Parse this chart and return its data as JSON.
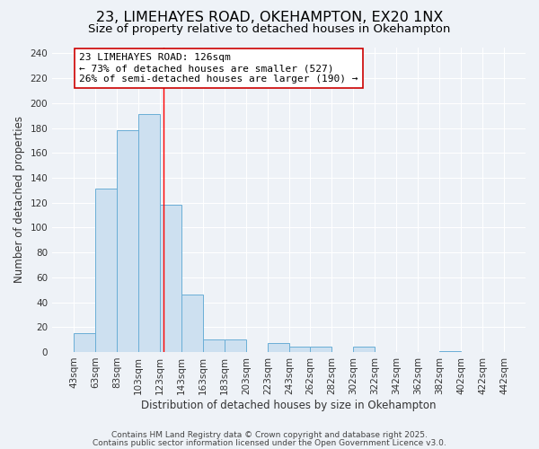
{
  "title": "23, LIMEHAYES ROAD, OKEHAMPTON, EX20 1NX",
  "subtitle": "Size of property relative to detached houses in Okehampton",
  "xlabel": "Distribution of detached houses by size in Okehampton",
  "ylabel": "Number of detached properties",
  "tick_positions": [
    43,
    63,
    83,
    103,
    123,
    143,
    163,
    183,
    203,
    223,
    243,
    262,
    282,
    302,
    322,
    342,
    362,
    382,
    402,
    422,
    442
  ],
  "bar_heights": [
    15,
    131,
    178,
    191,
    118,
    46,
    10,
    10,
    0,
    7,
    4,
    4,
    0,
    4,
    0,
    0,
    0,
    1,
    0,
    0
  ],
  "bar_color": "#cde0f0",
  "bar_edge_color": "#6aaed6",
  "reference_line_x": 126,
  "ylim": [
    0,
    245
  ],
  "yticks": [
    0,
    20,
    40,
    60,
    80,
    100,
    120,
    140,
    160,
    180,
    200,
    220,
    240
  ],
  "background_color": "#eef2f7",
  "grid_color": "#ffffff",
  "annotation_line1": "23 LIMEHAYES ROAD: 126sqm",
  "annotation_line2": "← 73% of detached houses are smaller (527)",
  "annotation_line3": "26% of semi-detached houses are larger (190) →",
  "footer_line1": "Contains HM Land Registry data © Crown copyright and database right 2025.",
  "footer_line2": "Contains public sector information licensed under the Open Government Licence v3.0.",
  "title_fontsize": 11.5,
  "subtitle_fontsize": 9.5,
  "axis_label_fontsize": 8.5,
  "tick_fontsize": 7.5,
  "annotation_fontsize": 8,
  "footer_fontsize": 6.5
}
